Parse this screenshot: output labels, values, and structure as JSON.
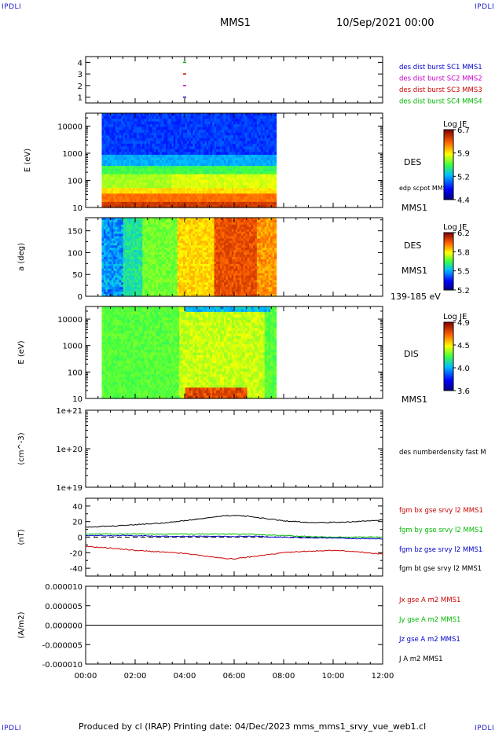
{
  "header": {
    "corner_left_top": "IPDLI",
    "corner_right_top": "IPDLI",
    "corner_left_bottom": "IPDLI",
    "corner_right_bottom": "IPDLI",
    "spacecraft": "MMS1",
    "date": "10/Sep/2021 00:00"
  },
  "footer": {
    "text": "Produced by cl (IRAP)   Printing date: 04/Dec/2023   mms_mms1_srvy_vue_web1.cl"
  },
  "chart_data": [
    {
      "type": "scatter",
      "panel": "burst",
      "yticks": [
        "4",
        "3",
        "2",
        "1"
      ],
      "ylim": [
        0.5,
        4.5
      ],
      "series": [
        {
          "name": "des dist burst SC1 MMS1",
          "color": "#0000cc",
          "x_hours": [
            4.0
          ],
          "y": [
            1
          ]
        },
        {
          "name": "des dist burst SC2 MMS2",
          "color": "#cc00cc",
          "x_hours": [
            4.0
          ],
          "y": [
            2
          ]
        },
        {
          "name": "des dist burst SC3 MMS3",
          "color": "#cc0000",
          "x_hours": [
            4.0
          ],
          "y": [
            3
          ]
        },
        {
          "name": "des dist burst SC4 MMS4",
          "color": "#00bb00",
          "x_hours": [
            4.0
          ],
          "y": [
            4
          ]
        }
      ]
    },
    {
      "type": "heatmap",
      "panel": "des-energy",
      "ylabel": "E (eV)",
      "yscale": "log",
      "ylim": [
        10,
        30000
      ],
      "yticks": [
        "10000",
        "1000",
        "100",
        "10"
      ],
      "label": "DES",
      "label2": "edp scpot MMS1",
      "label3": "MMS1",
      "data_range_hours": [
        0.65,
        7.7
      ],
      "colorbar": {
        "title": "Log JE",
        "ticks": [
          "6.7",
          "5.9",
          "5.2",
          "4.4"
        ],
        "min": 4.4,
        "max": 6.7
      }
    },
    {
      "type": "heatmap",
      "panel": "des-pitch",
      "ylabel": "a (deg)",
      "ylim": [
        0,
        180
      ],
      "yticks": [
        "150",
        "100",
        "50",
        "0"
      ],
      "label": "DES",
      "label2": "MMS1",
      "label3": "139-185 eV",
      "data_range_hours": [
        0.65,
        7.7
      ],
      "colorbar": {
        "title": "Log JE",
        "ticks": [
          "6.2",
          "5.8",
          "5.5",
          "5.2"
        ],
        "min": 5.2,
        "max": 6.2
      }
    },
    {
      "type": "heatmap",
      "panel": "dis-energy",
      "ylabel": "E (eV)",
      "yscale": "log",
      "ylim": [
        10,
        30000
      ],
      "yticks": [
        "10000",
        "1000",
        "100",
        "10"
      ],
      "label": "DIS",
      "label2": "MMS1",
      "data_range_hours": [
        0.65,
        7.7
      ],
      "colorbar": {
        "title": "Log JE",
        "ticks": [
          "4.9",
          "4.5",
          "4.0",
          "3.6"
        ],
        "min": 3.6,
        "max": 4.9
      }
    },
    {
      "type": "line",
      "panel": "density",
      "ylabel": "(cm^-3)",
      "yscale": "log",
      "ylim": [
        1e+19,
        1e+21
      ],
      "yticks": [
        "1e+21",
        "1e+20",
        "1e+19"
      ],
      "series": [
        {
          "name": "des numberdensity fast M",
          "color": "#000000",
          "x_hours": [],
          "y": []
        }
      ]
    },
    {
      "type": "line",
      "panel": "fgm",
      "ylabel": "(nT)",
      "ylim": [
        -50,
        50
      ],
      "yticks": [
        "40",
        "20",
        "0",
        "-20",
        "-40"
      ],
      "x_hours": [
        0,
        1,
        2,
        3,
        4,
        5,
        5.5,
        6,
        6.5,
        7,
        8,
        9,
        10,
        11,
        12
      ],
      "series": [
        {
          "name": "fgm bx gse srvy l2 MMS1",
          "color": "#cc0000",
          "values": [
            -12,
            -14,
            -17,
            -19,
            -21,
            -25,
            -27,
            -28,
            -26,
            -24,
            -20,
            -18,
            -17,
            -19,
            -22
          ]
        },
        {
          "name": "fgm by gse srvy l2 MMS1",
          "color": "#00bb00",
          "values": [
            4,
            4,
            4,
            4,
            4,
            4,
            4,
            4,
            4,
            3,
            2,
            1,
            0,
            0,
            0
          ]
        },
        {
          "name": "fgm bz gse srvy l2 MMS1",
          "color": "#0000cc",
          "values": [
            2,
            2,
            2,
            1,
            1,
            1,
            1,
            1,
            1,
            1,
            0,
            -1,
            -1,
            -2,
            -2
          ]
        },
        {
          "name": "fgm bt gse srvy l2 MMS1",
          "color": "#000000",
          "values": [
            13,
            14,
            16,
            18,
            21,
            25,
            27,
            28,
            27,
            25,
            21,
            19,
            19,
            20,
            22
          ]
        }
      ]
    },
    {
      "type": "line",
      "panel": "current",
      "ylabel": "(A/m2)",
      "ylim": [
        -1e-05,
        1e-05
      ],
      "yticks": [
        "0.000010",
        "0.000005",
        "0.000000",
        "-0.000005",
        "-0.000010"
      ],
      "xticks": [
        "00:00",
        "02:00",
        "04:00",
        "06:00",
        "08:00",
        "10:00",
        "12:00"
      ],
      "series": [
        {
          "name": "Jx gse A m2 MMS1",
          "color": "#cc0000",
          "x_hours": [
            0,
            12
          ],
          "values": [
            0,
            0
          ]
        },
        {
          "name": "Jy gse A m2 MMS1",
          "color": "#00bb00",
          "x_hours": [
            0,
            12
          ],
          "values": [
            0,
            0
          ]
        },
        {
          "name": "Jz gse A m2 MMS1",
          "color": "#0000cc",
          "x_hours": [
            0,
            12
          ],
          "values": [
            0,
            0
          ]
        },
        {
          "name": "J A m2 MMS1",
          "color": "#000000",
          "x_hours": [
            0,
            12
          ],
          "values": [
            0,
            0
          ]
        }
      ]
    }
  ]
}
